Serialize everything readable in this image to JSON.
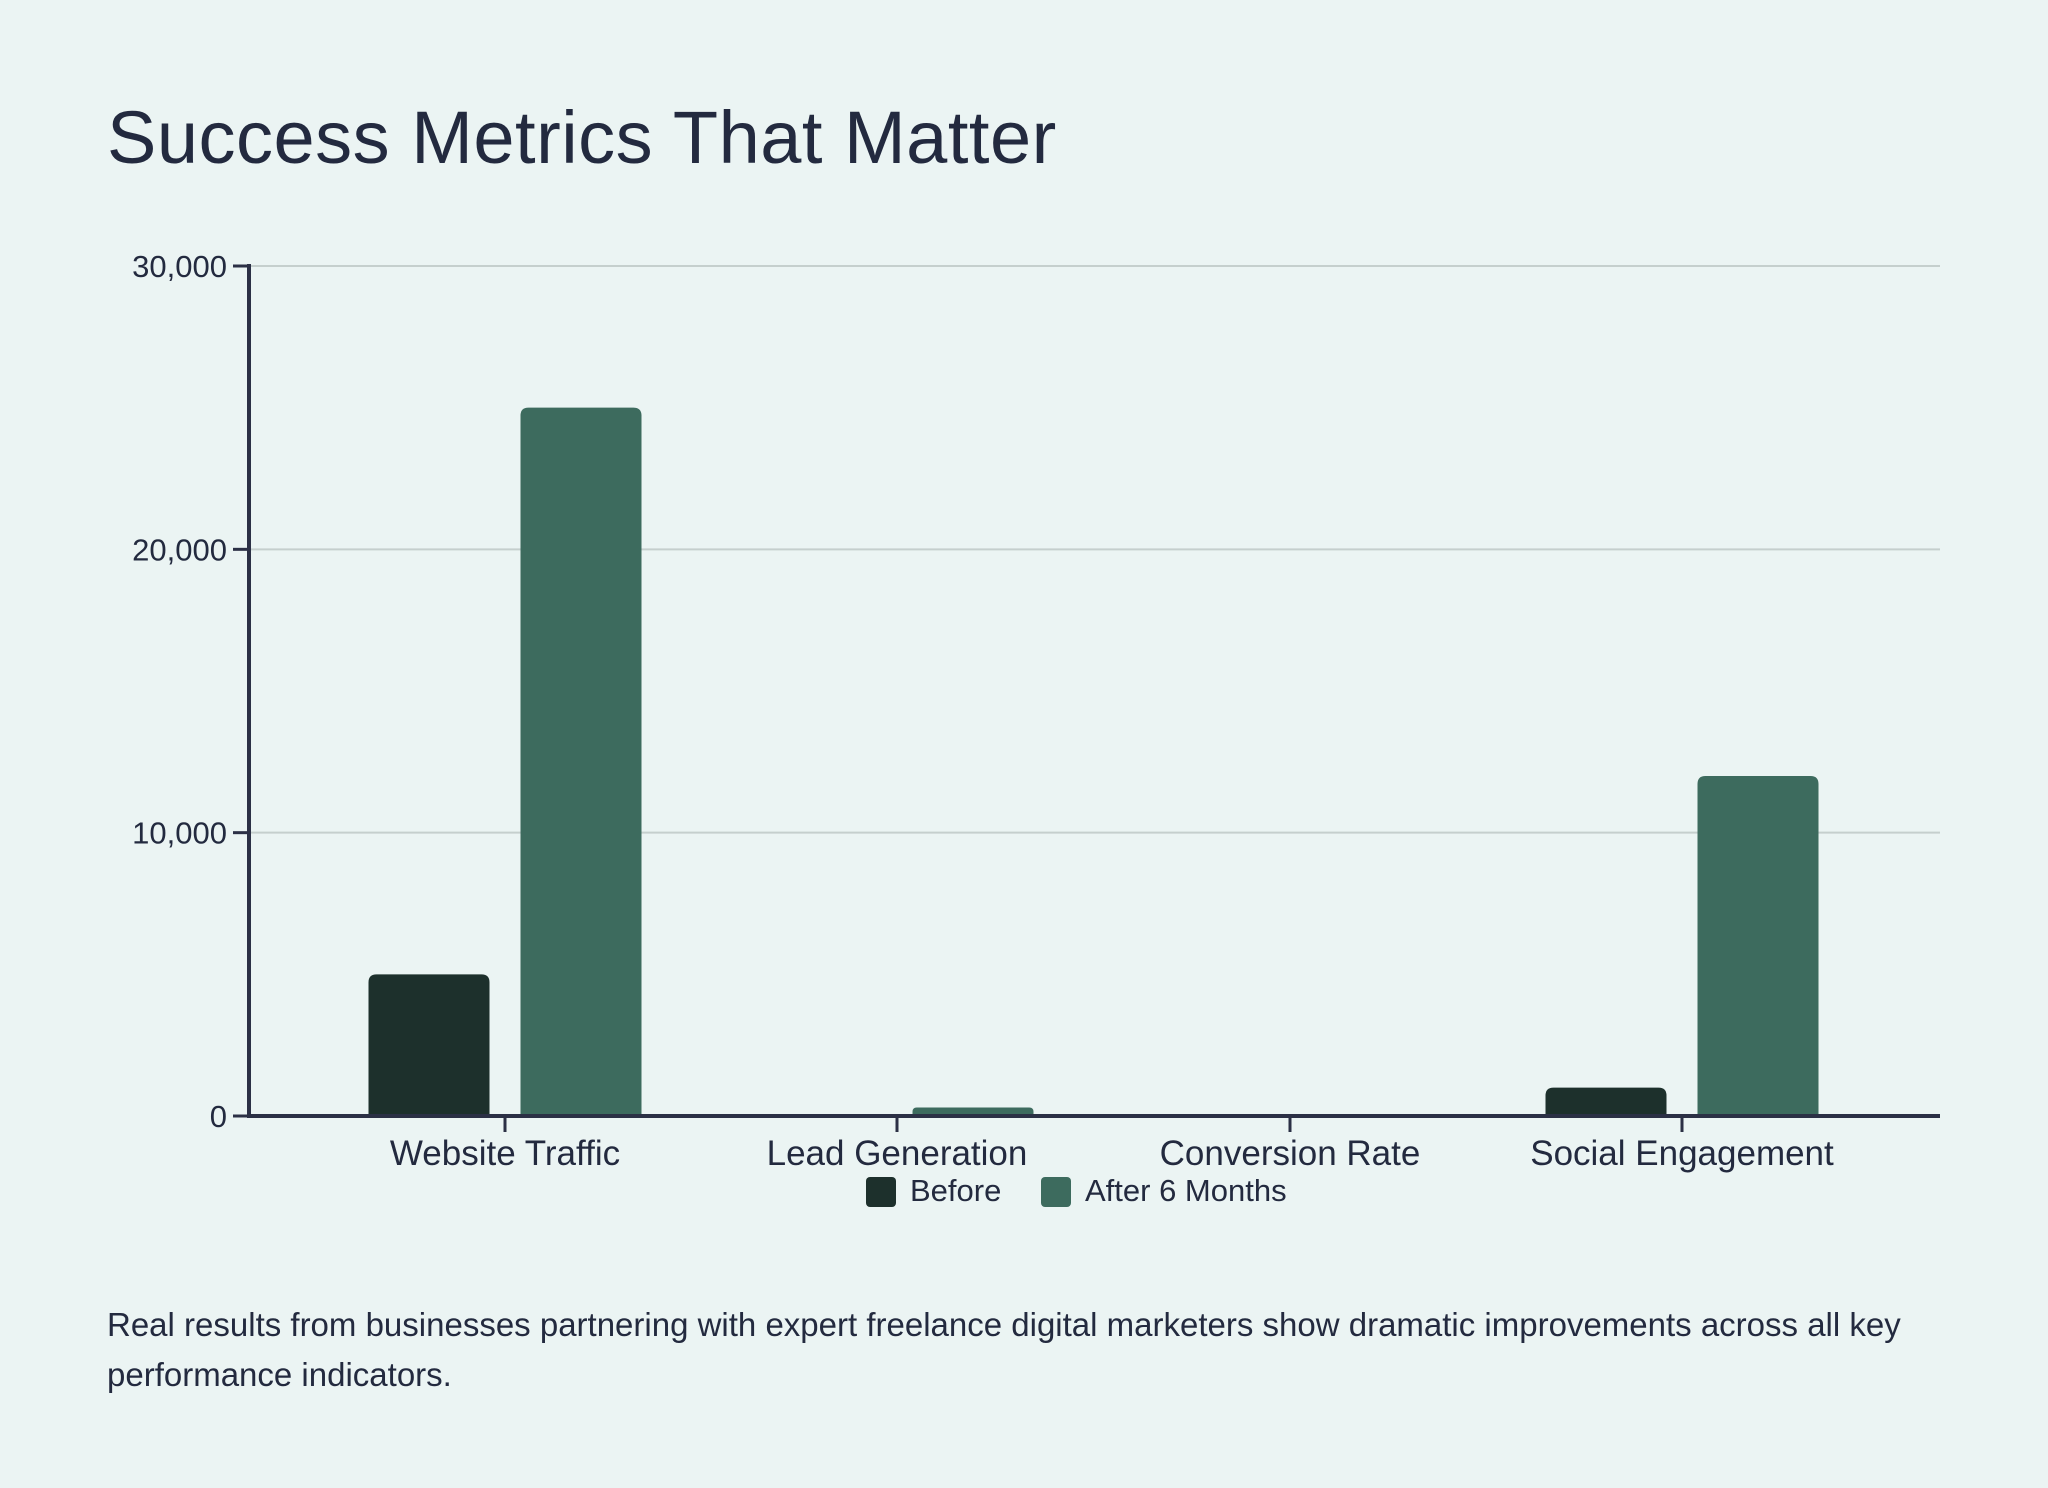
{
  "page": {
    "title": "Success Metrics That Matter",
    "caption": "Real results from businesses partnering with expert freelance digital marketers show dramatic improvements across all key performance indicators."
  },
  "colors": {
    "background": "#ebf4f3",
    "text": "#232a3f",
    "axis": "#2b3045",
    "grid": "#c5cfcd",
    "before": "#1d302c",
    "after": "#3d6b5e"
  },
  "chart_data": {
    "type": "bar",
    "title": "Success Metrics That Matter",
    "xlabel": "",
    "ylabel": "",
    "categories": [
      "Website Traffic",
      "Lead Generation",
      "Conversion Rate",
      "Social Engagement"
    ],
    "series": [
      {
        "name": "Before",
        "values": [
          5000,
          0,
          0,
          1000
        ]
      },
      {
        "name": "After 6 Months",
        "values": [
          25000,
          300,
          0,
          12000
        ]
      }
    ],
    "ylim": [
      0,
      30000
    ],
    "yticks": [
      0,
      10000,
      20000,
      30000
    ],
    "ytick_labels": [
      "0",
      "10,000",
      "20,000",
      "30,000"
    ],
    "grid": true,
    "legend": "bottom-center"
  }
}
